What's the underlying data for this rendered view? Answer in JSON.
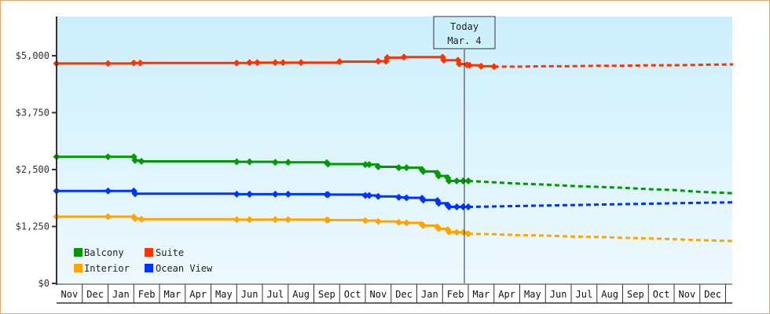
{
  "chart_data": {
    "type": "line",
    "title": "",
    "xlabel": "",
    "ylabel": "",
    "ylim": [
      0,
      5900
    ],
    "y_ticks": [
      {
        "value": 0,
        "label": "$0"
      },
      {
        "value": 1250,
        "label": "$1,250"
      },
      {
        "value": 2500,
        "label": "$2,500"
      },
      {
        "value": 3750,
        "label": "$3,750"
      },
      {
        "value": 5000,
        "label": "$5,000"
      }
    ],
    "x_months": [
      "Nov",
      "Dec",
      "Jan",
      "Feb",
      "Mar",
      "Apr",
      "May",
      "Jun",
      "Jul",
      "Aug",
      "Sep",
      "Oct",
      "Nov",
      "Dec",
      "Jan",
      "Feb",
      "Mar",
      "Apr",
      "May",
      "Jun",
      "Jul",
      "Aug",
      "Sep",
      "Oct",
      "Nov",
      "Dec",
      ""
    ],
    "today_marker": {
      "line1": "Today",
      "line2": "Mar. 4",
      "x_month_index": 16.0
    },
    "grid": false,
    "legend_position": "bottom-left inside",
    "series": [
      {
        "name": "Balcony",
        "color": "#009900",
        "historical": [
          [
            0.0,
            2780
          ],
          [
            2.0,
            2780
          ],
          [
            3.0,
            2780
          ],
          [
            3.05,
            2700
          ],
          [
            3.3,
            2680
          ],
          [
            7.0,
            2670
          ],
          [
            7.5,
            2670
          ],
          [
            8.5,
            2660
          ],
          [
            9.0,
            2660
          ],
          [
            10.5,
            2650
          ],
          [
            10.55,
            2620
          ],
          [
            12.0,
            2610
          ],
          [
            12.15,
            2610
          ],
          [
            12.5,
            2560
          ],
          [
            13.3,
            2540
          ],
          [
            13.6,
            2540
          ],
          [
            14.2,
            2500
          ],
          [
            14.25,
            2460
          ],
          [
            14.8,
            2420
          ],
          [
            14.85,
            2360
          ],
          [
            15.2,
            2320
          ],
          [
            15.25,
            2250
          ],
          [
            15.55,
            2250
          ],
          [
            15.8,
            2250
          ],
          [
            16.0,
            2250
          ]
        ],
        "projected": [
          [
            16.0,
            2250
          ],
          [
            17.0,
            2220
          ],
          [
            18.0,
            2190
          ],
          [
            19.0,
            2170
          ],
          [
            20.0,
            2140
          ],
          [
            21.0,
            2120
          ],
          [
            22.0,
            2100
          ],
          [
            23.0,
            2070
          ],
          [
            24.0,
            2050
          ],
          [
            25.0,
            2010
          ],
          [
            26.3,
            1980
          ]
        ]
      },
      {
        "name": "Suite",
        "color": "#ff3300",
        "historical": [
          [
            0.0,
            4830
          ],
          [
            2.0,
            4830
          ],
          [
            3.0,
            4840
          ],
          [
            3.25,
            4840
          ],
          [
            7.0,
            4840
          ],
          [
            7.5,
            4850
          ],
          [
            7.8,
            4850
          ],
          [
            8.5,
            4850
          ],
          [
            8.8,
            4850
          ],
          [
            9.5,
            4850
          ],
          [
            11.0,
            4870
          ],
          [
            12.5,
            4880
          ],
          [
            12.8,
            4880
          ],
          [
            12.85,
            4960
          ],
          [
            13.5,
            4970
          ],
          [
            15.0,
            4970
          ],
          [
            15.05,
            4900
          ],
          [
            15.6,
            4900
          ],
          [
            15.65,
            4820
          ],
          [
            15.95,
            4800
          ],
          [
            16.05,
            4790
          ],
          [
            16.5,
            4770
          ],
          [
            17.0,
            4760
          ]
        ],
        "projected": [
          [
            17.0,
            4760
          ],
          [
            18.0,
            4760
          ],
          [
            19.0,
            4770
          ],
          [
            20.0,
            4770
          ],
          [
            21.0,
            4780
          ],
          [
            22.0,
            4780
          ],
          [
            23.0,
            4790
          ],
          [
            24.0,
            4790
          ],
          [
            25.0,
            4800
          ],
          [
            26.3,
            4810
          ]
        ]
      },
      {
        "name": "Interior",
        "color": "#ffa500",
        "historical": [
          [
            0.0,
            1465
          ],
          [
            2.0,
            1465
          ],
          [
            3.0,
            1460
          ],
          [
            3.05,
            1420
          ],
          [
            3.3,
            1410
          ],
          [
            7.0,
            1400
          ],
          [
            7.5,
            1400
          ],
          [
            8.5,
            1400
          ],
          [
            9.0,
            1400
          ],
          [
            10.5,
            1390
          ],
          [
            10.55,
            1390
          ],
          [
            12.0,
            1380
          ],
          [
            12.5,
            1360
          ],
          [
            13.3,
            1340
          ],
          [
            13.6,
            1330
          ],
          [
            14.2,
            1290
          ],
          [
            14.25,
            1270
          ],
          [
            14.8,
            1240
          ],
          [
            14.85,
            1200
          ],
          [
            15.2,
            1180
          ],
          [
            15.25,
            1130
          ],
          [
            15.55,
            1120
          ],
          [
            15.8,
            1120
          ],
          [
            16.0,
            1090
          ]
        ],
        "projected": [
          [
            16.0,
            1090
          ],
          [
            17.0,
            1080
          ],
          [
            18.0,
            1060
          ],
          [
            19.0,
            1050
          ],
          [
            20.0,
            1030
          ],
          [
            21.0,
            1020
          ],
          [
            22.0,
            1000
          ],
          [
            23.0,
            990
          ],
          [
            24.0,
            970
          ],
          [
            25.0,
            950
          ],
          [
            26.3,
            930
          ]
        ]
      },
      {
        "name": "Ocean View",
        "color": "#0033ff",
        "historical": [
          [
            0.0,
            2030
          ],
          [
            2.0,
            2030
          ],
          [
            3.0,
            2030
          ],
          [
            3.05,
            1970
          ],
          [
            7.0,
            1960
          ],
          [
            7.5,
            1960
          ],
          [
            8.5,
            1960
          ],
          [
            9.0,
            1960
          ],
          [
            10.5,
            1950
          ],
          [
            10.55,
            1950
          ],
          [
            12.0,
            1930
          ],
          [
            12.15,
            1930
          ],
          [
            12.5,
            1910
          ],
          [
            13.3,
            1890
          ],
          [
            13.6,
            1880
          ],
          [
            14.2,
            1870
          ],
          [
            14.25,
            1830
          ],
          [
            14.8,
            1820
          ],
          [
            14.85,
            1760
          ],
          [
            15.2,
            1720
          ],
          [
            15.25,
            1680
          ],
          [
            15.55,
            1680
          ],
          [
            15.8,
            1680
          ],
          [
            16.0,
            1680
          ]
        ],
        "projected": [
          [
            16.0,
            1680
          ],
          [
            17.0,
            1690
          ],
          [
            18.0,
            1700
          ],
          [
            19.0,
            1710
          ],
          [
            20.0,
            1720
          ],
          [
            21.0,
            1730
          ],
          [
            22.0,
            1740
          ],
          [
            23.0,
            1750
          ],
          [
            24.0,
            1760
          ],
          [
            25.0,
            1770
          ],
          [
            26.3,
            1780
          ]
        ]
      }
    ]
  },
  "legend": {
    "items": [
      {
        "label": "Balcony",
        "color": "#009900"
      },
      {
        "label": "Suite",
        "color": "#ff3300"
      },
      {
        "label": "Interior",
        "color": "#ffa500"
      },
      {
        "label": "Ocean View",
        "color": "#0033ff"
      }
    ]
  },
  "today": {
    "line1": "Today",
    "line2": "Mar. 4"
  }
}
